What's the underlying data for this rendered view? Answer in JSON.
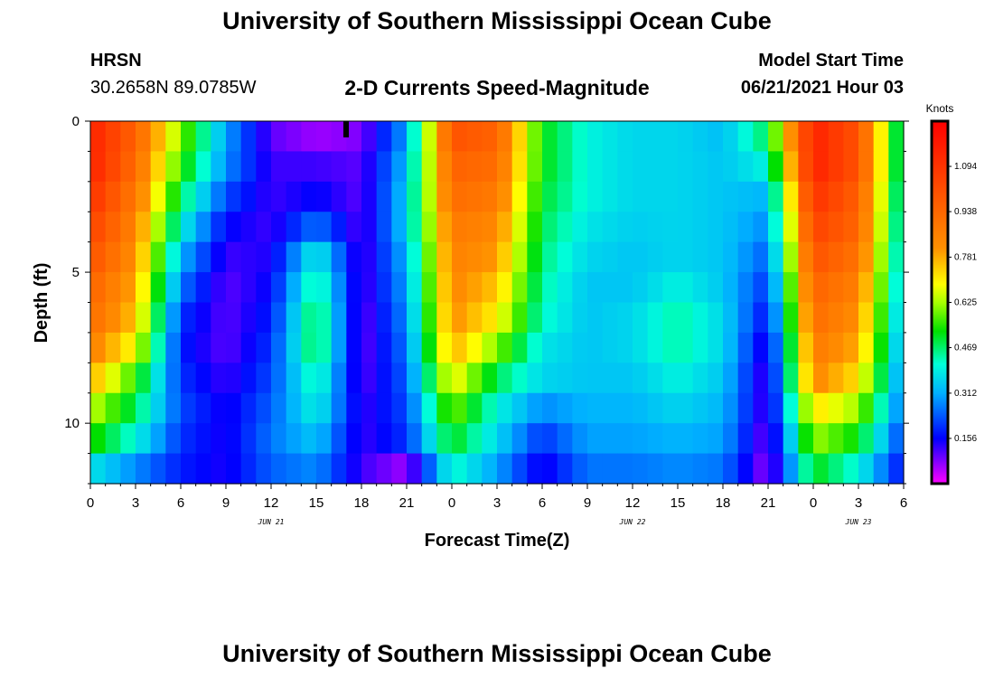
{
  "page": {
    "title_top": "University of Southern Mississippi Ocean Cube",
    "title_bottom": "University of Southern Mississippi Ocean Cube",
    "station": "HRSN",
    "coordinates": "30.2658N  89.0785W",
    "plot_title": "2-D Currents Speed-Magnitude",
    "model_start_label": "Model Start Time",
    "model_start_value": "06/21/2021 Hour 03"
  },
  "chart_data": {
    "type": "heatmap",
    "title": "2-D Currents Speed-Magnitude",
    "xlabel": "Forecast Time(Z)",
    "ylabel": "Depth (ft)",
    "x_range_hours": [
      0,
      54
    ],
    "y_range_ft": [
      0,
      12
    ],
    "y_inverted": true,
    "x_tick_hours": [
      0,
      3,
      6,
      9,
      12,
      15,
      18,
      21,
      24,
      27,
      30,
      33,
      36,
      39,
      42,
      45,
      48,
      51,
      54
    ],
    "x_tick_labels": [
      "0",
      "3",
      "6",
      "9",
      "12",
      "15",
      "18",
      "21",
      "0",
      "3",
      "6",
      "9",
      "12",
      "15",
      "18",
      "21",
      "0",
      "3",
      "6"
    ],
    "y_ticks": [
      0,
      5,
      10
    ],
    "y_tick_labels": [
      "0",
      "5",
      "10"
    ],
    "date_labels": [
      {
        "hour": 12,
        "label": "JUN 21"
      },
      {
        "hour": 36,
        "label": "JUN 22"
      },
      {
        "hour": 51,
        "label": "JUN 23"
      }
    ],
    "colorbar": {
      "units": "Knots",
      "min": 0.0,
      "max": 1.25,
      "tick_values": [
        0.156,
        0.312,
        0.469,
        0.625,
        0.781,
        0.938,
        1.094
      ],
      "tick_labels": [
        "0.156",
        "0.312",
        "0.469",
        "0.625",
        "0.781",
        "0.938",
        "1.094"
      ]
    },
    "depth_levels_ft": [
      0.5,
      1.5,
      2.5,
      3.5,
      4.5,
      5.5,
      6.5,
      7.5,
      8.5,
      9.5,
      10.5,
      11.5
    ],
    "time_hours": [
      0,
      3,
      6,
      9,
      12,
      15,
      18,
      21,
      24,
      27,
      30,
      33,
      36,
      39,
      42,
      45,
      48,
      51,
      54
    ],
    "speed_knots": [
      [
        1.15,
        0.95,
        0.6,
        0.3,
        0.1,
        0.06,
        0.08,
        0.3,
        1.0,
        0.95,
        0.52,
        0.4,
        0.36,
        0.36,
        0.33,
        0.48,
        1.15,
        1.0,
        0.4
      ],
      [
        1.15,
        0.92,
        0.55,
        0.28,
        0.12,
        0.12,
        0.1,
        0.33,
        0.95,
        0.92,
        0.52,
        0.4,
        0.36,
        0.36,
        0.34,
        0.4,
        1.15,
        1.0,
        0.4
      ],
      [
        1.1,
        0.88,
        0.48,
        0.22,
        0.12,
        0.16,
        0.1,
        0.35,
        0.92,
        0.88,
        0.5,
        0.4,
        0.36,
        0.36,
        0.34,
        0.32,
        1.1,
        0.96,
        0.38
      ],
      [
        1.05,
        0.85,
        0.4,
        0.16,
        0.12,
        0.26,
        0.1,
        0.35,
        0.88,
        0.84,
        0.48,
        0.38,
        0.35,
        0.36,
        0.34,
        0.28,
        1.05,
        0.94,
        0.36
      ],
      [
        1.0,
        0.82,
        0.32,
        0.12,
        0.14,
        0.4,
        0.1,
        0.32,
        0.86,
        0.8,
        0.46,
        0.36,
        0.34,
        0.36,
        0.34,
        0.24,
        1.0,
        0.9,
        0.34
      ],
      [
        0.95,
        0.78,
        0.26,
        0.1,
        0.16,
        0.46,
        0.1,
        0.3,
        0.84,
        0.75,
        0.44,
        0.34,
        0.34,
        0.4,
        0.34,
        0.2,
        0.95,
        0.86,
        0.32
      ],
      [
        0.92,
        0.75,
        0.2,
        0.1,
        0.18,
        0.5,
        0.09,
        0.28,
        0.82,
        0.7,
        0.42,
        0.34,
        0.36,
        0.44,
        0.36,
        0.16,
        0.92,
        0.82,
        0.3
      ],
      [
        0.86,
        0.68,
        0.18,
        0.1,
        0.2,
        0.5,
        0.09,
        0.26,
        0.78,
        0.6,
        0.38,
        0.34,
        0.36,
        0.44,
        0.36,
        0.12,
        0.88,
        0.78,
        0.28
      ],
      [
        0.78,
        0.55,
        0.2,
        0.12,
        0.22,
        0.44,
        0.1,
        0.24,
        0.7,
        0.48,
        0.36,
        0.34,
        0.34,
        0.4,
        0.34,
        0.1,
        0.84,
        0.72,
        0.26
      ],
      [
        0.65,
        0.48,
        0.22,
        0.14,
        0.24,
        0.4,
        0.12,
        0.22,
        0.6,
        0.4,
        0.28,
        0.32,
        0.32,
        0.36,
        0.32,
        0.1,
        0.72,
        0.62,
        0.24
      ],
      [
        0.55,
        0.4,
        0.2,
        0.14,
        0.26,
        0.34,
        0.12,
        0.2,
        0.52,
        0.36,
        0.2,
        0.3,
        0.3,
        0.32,
        0.3,
        0.08,
        0.62,
        0.52,
        0.2
      ],
      [
        0.38,
        0.28,
        0.18,
        0.14,
        0.24,
        0.28,
        0.12,
        0.06,
        0.42,
        0.3,
        0.14,
        0.26,
        0.26,
        0.28,
        0.26,
        0.06,
        0.52,
        0.4,
        0.16
      ]
    ]
  }
}
